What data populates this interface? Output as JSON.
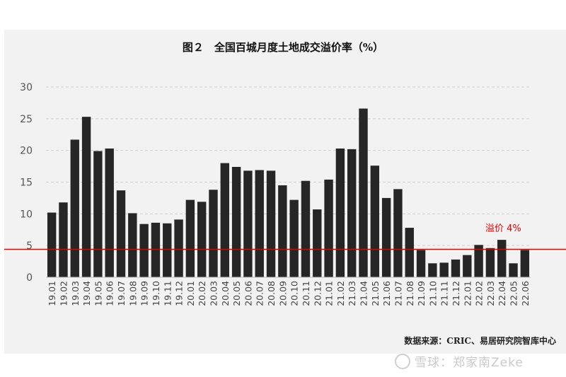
{
  "chart_data": {
    "type": "bar",
    "title": "图２　全国百城月度土地成交溢价率（%）",
    "source": "数据来源：CRIC、易居研究院智库中心",
    "categories": [
      "19.01",
      "19.02",
      "19.03",
      "19.04",
      "19.05",
      "19.06",
      "19.07",
      "19.08",
      "19.09",
      "19.10",
      "19.11",
      "19.12",
      "20.01",
      "20.02",
      "20.03",
      "20.04",
      "20.05",
      "20.06",
      "20.07",
      "20.08",
      "20.09",
      "20.10",
      "20.11",
      "20.12",
      "21.01",
      "21.02",
      "21.03",
      "21.04",
      "21.05",
      "21.06",
      "21.07",
      "21.08",
      "21.09",
      "21.10",
      "21.11",
      "21.12",
      "22.01",
      "22.02",
      "22.03",
      "22.04",
      "22.05",
      "22.06"
    ],
    "values": [
      10.2,
      11.8,
      21.7,
      25.3,
      19.9,
      20.3,
      13.7,
      10.1,
      8.4,
      8.6,
      8.5,
      9.1,
      12.2,
      11.9,
      13.8,
      18.0,
      17.4,
      16.8,
      16.9,
      16.8,
      14.5,
      12.2,
      15.2,
      10.7,
      15.4,
      20.3,
      20.2,
      26.6,
      17.6,
      12.5,
      13.9,
      7.8,
      4.3,
      2.2,
      2.3,
      2.8,
      3.5,
      5.1,
      4.6,
      5.9,
      2.2,
      4.3
    ],
    "yticks": [
      0,
      5,
      10,
      15,
      20,
      25,
      30
    ],
    "ylim": [
      0,
      30
    ],
    "grid": true,
    "bar_color": "#262626",
    "reference_line": {
      "value": 4.4,
      "label": "溢价 4%",
      "color": "#e00000"
    }
  },
  "watermark": "雪球：郑家南Zeke"
}
